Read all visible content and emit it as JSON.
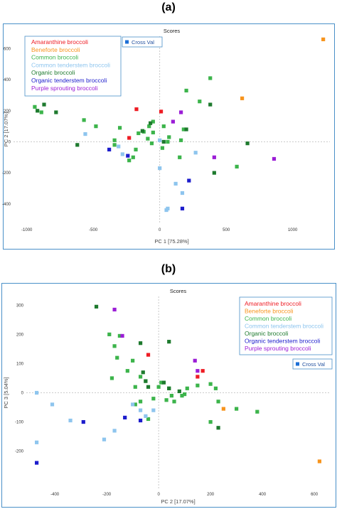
{
  "panels": [
    {
      "label": "(a)"
    },
    {
      "label": "(b)"
    }
  ],
  "series_colors": {
    "Amaranthine broccoli": "#ee1c24",
    "Beneforte broccoli": "#f7941d",
    "Common broccoli": "#3cb44b",
    "Common tenderstem broccoli": "#8ec5ee",
    "Organic broccoli": "#1e7a2e",
    "Organic tenderstem broccoli": "#1c1ccc",
    "Purple sprouting broccoli": "#9b1dd6"
  },
  "chart_data": [
    {
      "type": "scatter",
      "title": "Scores",
      "xlabel": "PC 1 [75.28%]",
      "ylabel": "PC 2 [17.07%]",
      "xlim": [
        -1100,
        1280
      ],
      "ylim": [
        -520,
        680
      ],
      "xticks": [
        -1000,
        -500,
        0,
        500,
        1000
      ],
      "yticks": [
        600,
        400,
        200,
        0,
        -200,
        -400
      ],
      "legend": {
        "position": "top-left"
      },
      "badge": "Cross Val",
      "series": [
        {
          "name": "Amaranthine broccoli",
          "points": [
            [
              -175,
              210
            ],
            [
              -230,
              25
            ],
            [
              10,
              195
            ]
          ]
        },
        {
          "name": "Beneforte broccoli",
          "points": [
            [
              620,
              280
            ],
            [
              1230,
              660
            ]
          ]
        },
        {
          "name": "Common broccoli",
          "points": [
            [
              -890,
              190
            ],
            [
              -940,
              225
            ],
            [
              -570,
              140
            ],
            [
              -480,
              100
            ],
            [
              -300,
              90
            ],
            [
              -340,
              10
            ],
            [
              -160,
              55
            ],
            [
              -180,
              -50
            ],
            [
              -200,
              -100
            ],
            [
              -120,
              65
            ],
            [
              -80,
              100
            ],
            [
              -50,
              60
            ],
            [
              30,
              100
            ],
            [
              70,
              30
            ],
            [
              160,
              10
            ],
            [
              180,
              80
            ],
            [
              200,
              330
            ],
            [
              300,
              260
            ],
            [
              380,
              410
            ],
            [
              -90,
              20
            ],
            [
              -60,
              -10
            ],
            [
              20,
              -40
            ],
            [
              60,
              0
            ],
            [
              150,
              -100
            ],
            [
              580,
              -160
            ],
            [
              -230,
              -120
            ],
            [
              -340,
              -20
            ],
            [
              -50,
              130
            ]
          ]
        },
        {
          "name": "Common tenderstem broccoli",
          "points": [
            [
              -560,
              50
            ],
            [
              -310,
              -30
            ],
            [
              -280,
              -80
            ],
            [
              0,
              10
            ],
            [
              0,
              -170
            ],
            [
              120,
              -270
            ],
            [
              170,
              -330
            ],
            [
              270,
              -70
            ],
            [
              60,
              -430
            ],
            [
              50,
              -440
            ]
          ]
        },
        {
          "name": "Organic broccoli",
          "points": [
            [
              -920,
              200
            ],
            [
              -870,
              240
            ],
            [
              -780,
              190
            ],
            [
              -620,
              -20
            ],
            [
              -70,
              120
            ],
            [
              -130,
              70
            ],
            [
              200,
              80
            ],
            [
              380,
              240
            ],
            [
              410,
              -200
            ],
            [
              660,
              -10
            ],
            [
              30,
              0
            ]
          ]
        },
        {
          "name": "Organic tenderstem broccoli",
          "points": [
            [
              -380,
              -50
            ],
            [
              -240,
              -90
            ],
            [
              220,
              -250
            ],
            [
              170,
              -430
            ]
          ]
        },
        {
          "name": "Purple sprouting broccoli",
          "points": [
            [
              160,
              190
            ],
            [
              100,
              130
            ],
            [
              410,
              -100
            ],
            [
              860,
              -110
            ]
          ]
        }
      ]
    },
    {
      "type": "scatter",
      "title": "Scores",
      "xlabel": "PC 2 [17.07%]",
      "ylabel": "PC 3 [5.04%]",
      "xlim": [
        -510,
        660
      ],
      "ylim": [
        -330,
        330
      ],
      "xticks": [
        -400,
        -200,
        0,
        200,
        400,
        600
      ],
      "yticks": [
        300,
        200,
        100,
        0,
        -100,
        -200
      ],
      "legend": {
        "position": "top-right"
      },
      "badge": "Cross Val",
      "series": [
        {
          "name": "Amaranthine broccoli",
          "points": [
            [
              -40,
              130
            ],
            [
              170,
              75
            ],
            [
              150,
              55
            ]
          ]
        },
        {
          "name": "Beneforte broccoli",
          "points": [
            [
              620,
              -235
            ],
            [
              250,
              -55
            ]
          ]
        },
        {
          "name": "Common broccoli",
          "points": [
            [
              -190,
              200
            ],
            [
              -150,
              195
            ],
            [
              -170,
              160
            ],
            [
              -160,
              120
            ],
            [
              -100,
              110
            ],
            [
              -120,
              75
            ],
            [
              -180,
              50
            ],
            [
              -70,
              55
            ],
            [
              -50,
              40
            ],
            [
              -90,
              20
            ],
            [
              10,
              35
            ],
            [
              30,
              -25
            ],
            [
              50,
              -10
            ],
            [
              90,
              -10
            ],
            [
              110,
              15
            ],
            [
              150,
              25
            ],
            [
              220,
              15
            ],
            [
              200,
              30
            ],
            [
              230,
              -30
            ],
            [
              300,
              -55
            ],
            [
              380,
              -65
            ],
            [
              -90,
              -40
            ],
            [
              -40,
              -90
            ],
            [
              60,
              -30
            ],
            [
              -20,
              -20
            ],
            [
              0,
              20
            ],
            [
              40,
              15
            ],
            [
              100,
              -5
            ],
            [
              200,
              -100
            ],
            [
              -70,
              -30
            ]
          ]
        },
        {
          "name": "Common tenderstem broccoli",
          "points": [
            [
              -470,
              0
            ],
            [
              -410,
              -40
            ],
            [
              -340,
              -95
            ],
            [
              -470,
              -170
            ],
            [
              -210,
              -160
            ],
            [
              -170,
              -130
            ],
            [
              -100,
              -40
            ],
            [
              -70,
              -60
            ],
            [
              -50,
              -80
            ],
            [
              -20,
              -60
            ]
          ]
        },
        {
          "name": "Organic broccoli",
          "points": [
            [
              -240,
              295
            ],
            [
              -60,
              70
            ],
            [
              20,
              35
            ],
            [
              40,
              15
            ],
            [
              80,
              5
            ],
            [
              -40,
              20
            ],
            [
              -50,
              40
            ],
            [
              40,
              175
            ],
            [
              230,
              -120
            ],
            [
              -70,
              170
            ]
          ]
        },
        {
          "name": "Organic tenderstem broccoli",
          "points": [
            [
              -470,
              -240
            ],
            [
              -290,
              -100
            ],
            [
              -130,
              -85
            ],
            [
              -70,
              -95
            ]
          ]
        },
        {
          "name": "Purple sprouting broccoli",
          "points": [
            [
              -170,
              285
            ],
            [
              -140,
              195
            ],
            [
              140,
              110
            ],
            [
              150,
              75
            ]
          ]
        }
      ]
    }
  ]
}
